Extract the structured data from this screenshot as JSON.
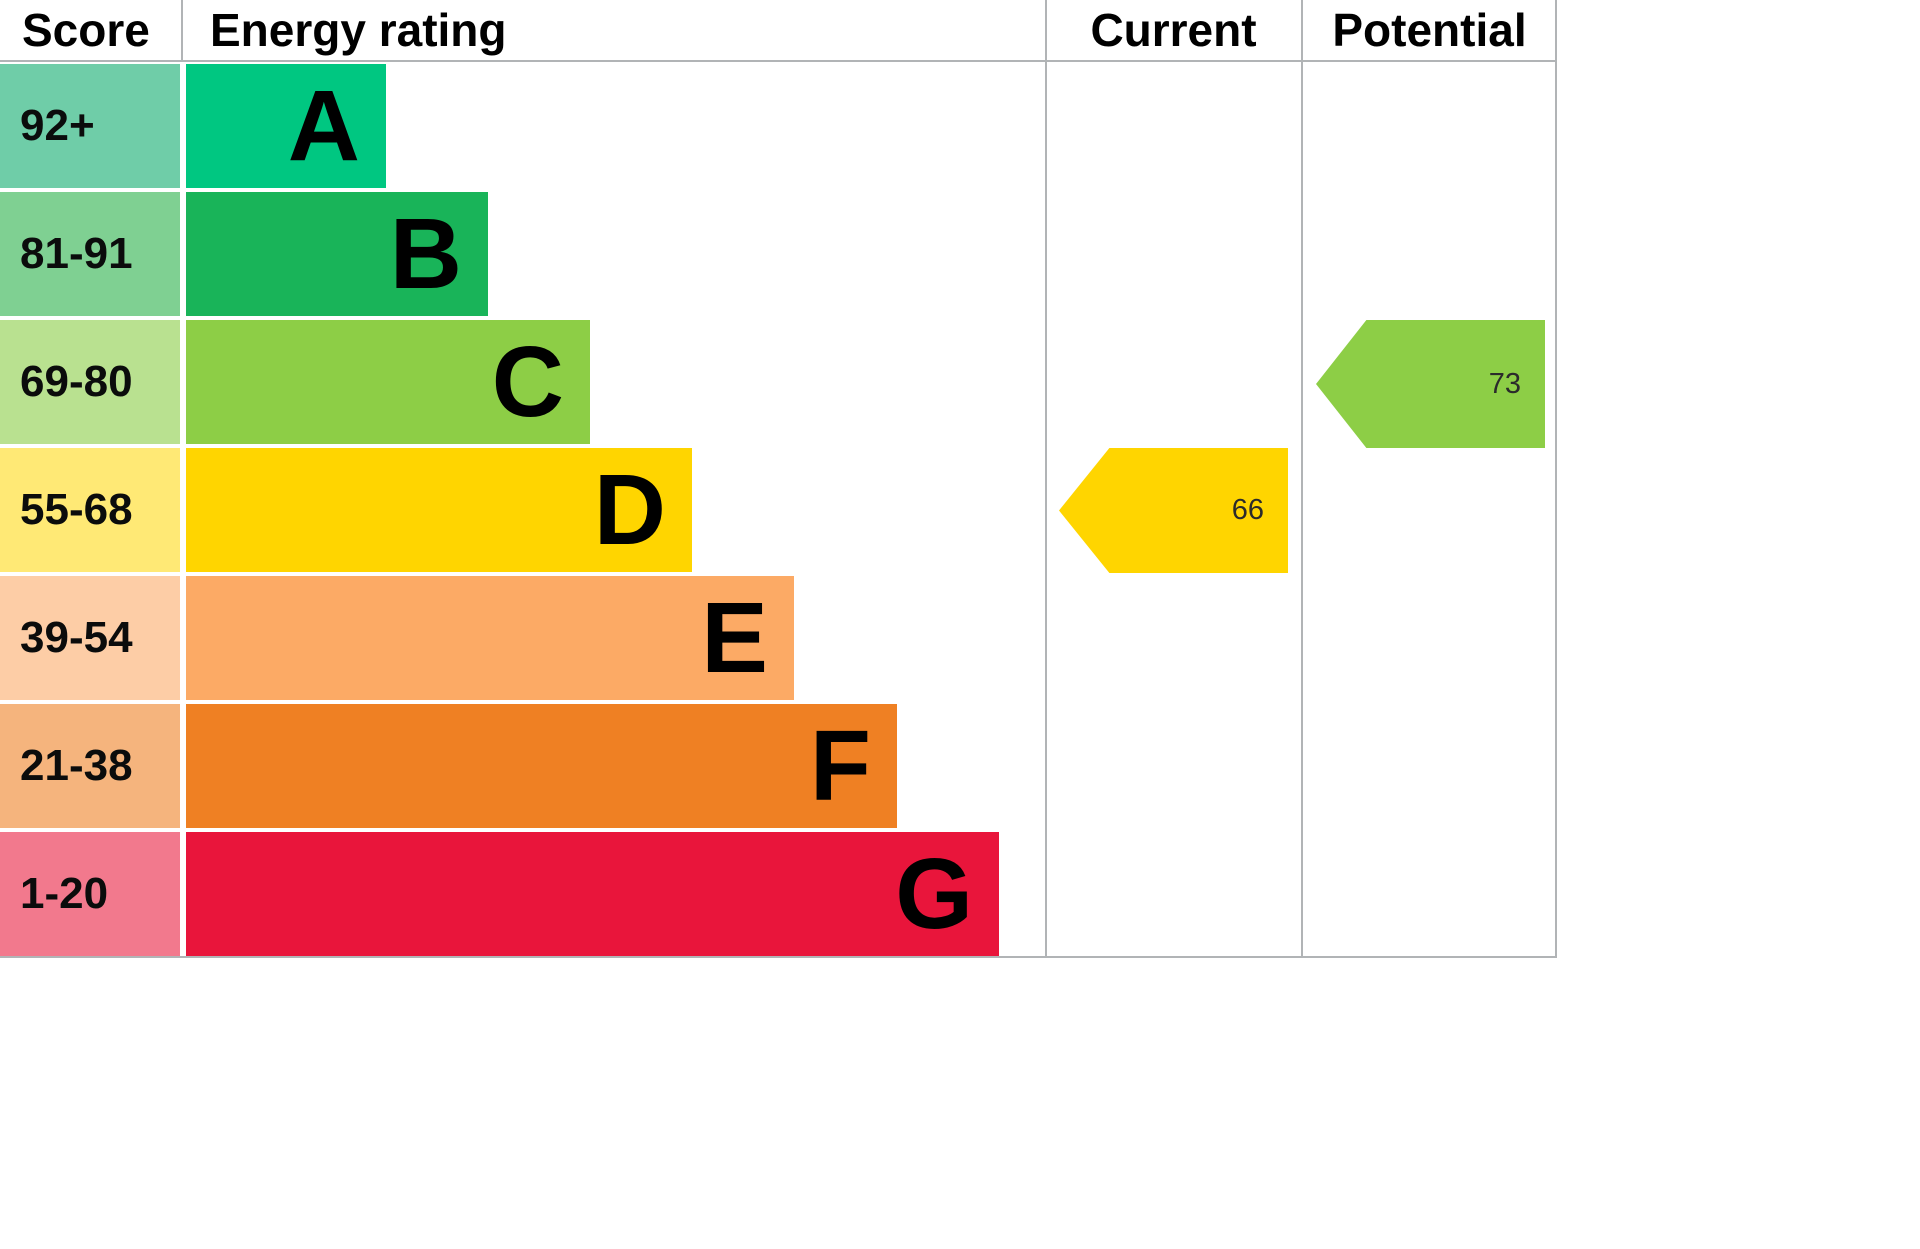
{
  "header": {
    "score_label": "Score",
    "rating_label": "Energy rating",
    "current_label": "Current",
    "potential_label": "Potential"
  },
  "bands": [
    {
      "letter": "A",
      "range": "92+",
      "bar_color": "#00c781",
      "range_color": "#6fcda8"
    },
    {
      "letter": "B",
      "range": "81-91",
      "bar_color": "#19b459",
      "range_color": "#7fd092"
    },
    {
      "letter": "C",
      "range": "69-80",
      "bar_color": "#8dce46",
      "range_color": "#b9e190"
    },
    {
      "letter": "D",
      "range": "55-68",
      "bar_color": "#ffd500",
      "range_color": "#ffe975"
    },
    {
      "letter": "E",
      "range": "39-54",
      "bar_color": "#fcaa65",
      "range_color": "#fdcda6"
    },
    {
      "letter": "F",
      "range": "21-38",
      "bar_color": "#ef8023",
      "range_color": "#f5b47d"
    },
    {
      "letter": "G",
      "range": "1-20",
      "bar_color": "#e9153b",
      "range_color": "#f2798d"
    }
  ],
  "markers": {
    "current": {
      "value": "66",
      "band": "D",
      "color": "#ffd500"
    },
    "potential": {
      "value": "73",
      "band": "C",
      "color": "#8dce46"
    }
  },
  "chart_data": {
    "type": "bar",
    "title": "Energy rating",
    "columns": [
      "Score",
      "Energy rating",
      "Current",
      "Potential"
    ],
    "categories": [
      "A",
      "B",
      "C",
      "D",
      "E",
      "F",
      "G"
    ],
    "score_ranges": [
      "92+",
      "81-91",
      "69-80",
      "55-68",
      "39-54",
      "21-38",
      "1-20"
    ],
    "bar_colors": [
      "#00c781",
      "#19b459",
      "#8dce46",
      "#ffd500",
      "#fcaa65",
      "#ef8023",
      "#e9153b"
    ],
    "current": {
      "value": 66,
      "band": "D",
      "color": "#ffd500"
    },
    "potential": {
      "value": 73,
      "band": "C",
      "color": "#8dce46"
    },
    "legend_position": "none",
    "grid": false
  }
}
